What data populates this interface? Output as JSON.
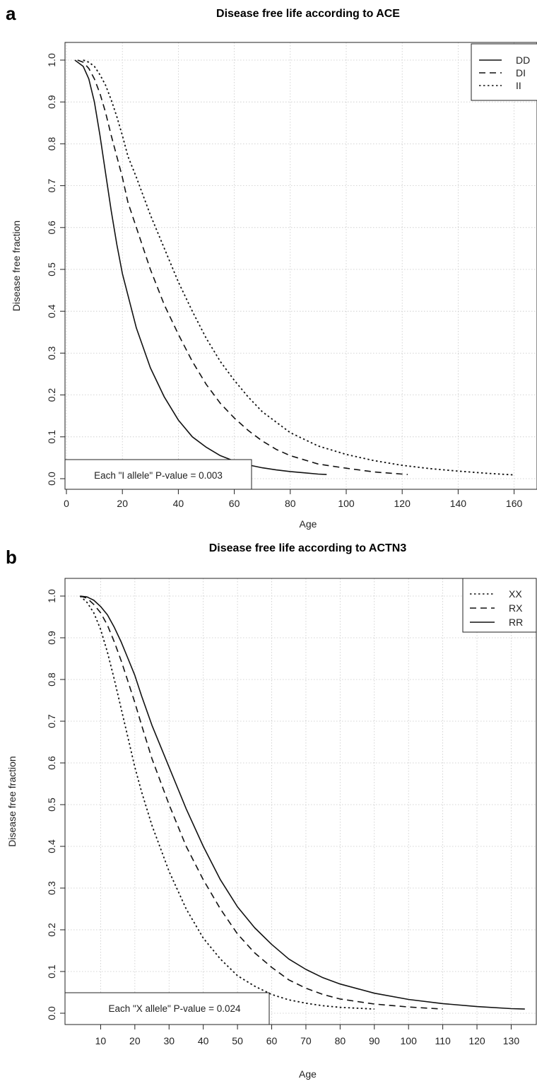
{
  "chart_data": [
    {
      "type": "line",
      "panel": "a",
      "title": "Disease free life according to ACE",
      "xlabel": "Age",
      "ylabel": "Disease free fraction",
      "xlim": [
        0,
        165
      ],
      "ylim": [
        0,
        1
      ],
      "x_ticks": [
        "0",
        "20",
        "40",
        "60",
        "80",
        "100",
        "120",
        "140",
        "160"
      ],
      "y_ticks": [
        "0.0",
        "0.1",
        "0.2",
        "0.3",
        "0.4",
        "0.5",
        "0.6",
        "0.7",
        "0.8",
        "0.9",
        "1.0"
      ],
      "grid": true,
      "legend_position": "top-right",
      "annotation": "Each \"I allele\" P-value = 0.003",
      "series": [
        {
          "name": "DD",
          "style": "solid",
          "x": [
            3,
            6,
            8,
            10,
            12,
            14,
            16,
            18,
            20,
            25,
            30,
            35,
            40,
            45,
            50,
            55,
            60,
            65,
            70,
            75,
            80,
            85,
            90,
            93
          ],
          "y": [
            1.0,
            0.985,
            0.955,
            0.9,
            0.82,
            0.73,
            0.64,
            0.56,
            0.49,
            0.36,
            0.265,
            0.195,
            0.14,
            0.1,
            0.075,
            0.055,
            0.042,
            0.033,
            0.026,
            0.021,
            0.017,
            0.014,
            0.011,
            0.01
          ]
        },
        {
          "name": "DI",
          "style": "dashed",
          "x": [
            4,
            6,
            8,
            10,
            12,
            14,
            16,
            18,
            20,
            22,
            25,
            30,
            35,
            40,
            45,
            50,
            55,
            60,
            65,
            70,
            75,
            80,
            90,
            100,
            110,
            120,
            122
          ],
          "y": [
            1.0,
            0.995,
            0.98,
            0.955,
            0.92,
            0.875,
            0.82,
            0.77,
            0.72,
            0.66,
            0.6,
            0.5,
            0.415,
            0.345,
            0.28,
            0.225,
            0.18,
            0.145,
            0.115,
            0.09,
            0.07,
            0.055,
            0.035,
            0.025,
            0.016,
            0.011,
            0.01
          ]
        },
        {
          "name": "II",
          "style": "dotted",
          "x": [
            6,
            8,
            10,
            12,
            14,
            16,
            18,
            20,
            22,
            25,
            30,
            35,
            40,
            45,
            50,
            55,
            60,
            65,
            70,
            80,
            90,
            100,
            110,
            120,
            130,
            140,
            150,
            160
          ],
          "y": [
            1.0,
            0.995,
            0.985,
            0.965,
            0.94,
            0.905,
            0.865,
            0.82,
            0.77,
            0.72,
            0.63,
            0.55,
            0.47,
            0.4,
            0.335,
            0.28,
            0.235,
            0.195,
            0.16,
            0.11,
            0.078,
            0.058,
            0.043,
            0.032,
            0.024,
            0.018,
            0.013,
            0.009
          ]
        }
      ]
    },
    {
      "type": "line",
      "panel": "b",
      "title": "Disease free life according to ACTN3",
      "xlabel": "Age",
      "ylabel": "Disease free fraction",
      "xlim": [
        0,
        140
      ],
      "ylim": [
        0,
        1
      ],
      "x_ticks": [
        "10",
        "20",
        "30",
        "40",
        "50",
        "60",
        "70",
        "80",
        "90",
        "100",
        "110",
        "120",
        "130"
      ],
      "y_ticks": [
        "0.0",
        "0.1",
        "0.2",
        "0.3",
        "0.4",
        "0.5",
        "0.6",
        "0.7",
        "0.8",
        "0.9",
        "1.0"
      ],
      "grid": true,
      "legend_position": "top-right",
      "annotation": "Each \"X allele\" P-value = 0.024",
      "series": [
        {
          "name": "XX",
          "style": "dotted",
          "x": [
            4,
            6,
            8,
            10,
            12,
            14,
            16,
            18,
            20,
            22,
            25,
            30,
            35,
            40,
            45,
            50,
            55,
            60,
            65,
            70,
            75,
            80,
            85,
            90
          ],
          "y": [
            1.0,
            0.985,
            0.96,
            0.92,
            0.865,
            0.8,
            0.73,
            0.66,
            0.59,
            0.53,
            0.45,
            0.34,
            0.25,
            0.18,
            0.13,
            0.09,
            0.065,
            0.045,
            0.032,
            0.024,
            0.018,
            0.014,
            0.012,
            0.01
          ]
        },
        {
          "name": "RX",
          "style": "dashed",
          "x": [
            4,
            6,
            8,
            10,
            12,
            14,
            16,
            18,
            20,
            22,
            25,
            30,
            35,
            40,
            45,
            50,
            55,
            60,
            65,
            70,
            75,
            80,
            90,
            100,
            110
          ],
          "y": [
            1.0,
            0.995,
            0.98,
            0.96,
            0.93,
            0.89,
            0.845,
            0.795,
            0.745,
            0.69,
            0.61,
            0.5,
            0.4,
            0.32,
            0.25,
            0.19,
            0.145,
            0.11,
            0.08,
            0.06,
            0.045,
            0.034,
            0.022,
            0.015,
            0.01
          ]
        },
        {
          "name": "RR",
          "style": "solid",
          "x": [
            4,
            6,
            8,
            10,
            12,
            14,
            16,
            18,
            20,
            22,
            25,
            30,
            35,
            40,
            45,
            50,
            55,
            60,
            65,
            70,
            75,
            80,
            90,
            100,
            110,
            120,
            130,
            134
          ],
          "y": [
            1.0,
            0.998,
            0.99,
            0.975,
            0.955,
            0.925,
            0.89,
            0.85,
            0.81,
            0.76,
            0.69,
            0.59,
            0.49,
            0.4,
            0.32,
            0.255,
            0.205,
            0.165,
            0.13,
            0.105,
            0.085,
            0.07,
            0.048,
            0.033,
            0.023,
            0.016,
            0.011,
            0.01
          ]
        }
      ]
    }
  ]
}
